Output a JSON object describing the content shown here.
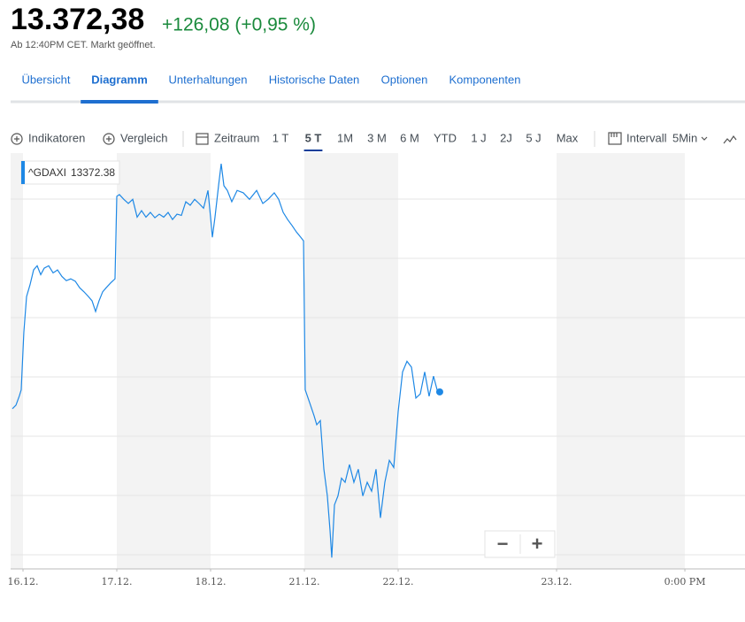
{
  "header": {
    "price": "13.372,38",
    "change": "+126,08 (+0,95 %)",
    "status": "Ab 12:40PM CET. Markt geöffnet."
  },
  "tabs": {
    "items": [
      "Übersicht",
      "Diagramm",
      "Unterhaltungen",
      "Historische Daten",
      "Optionen",
      "Komponenten"
    ],
    "active": "Diagramm"
  },
  "toolbar": {
    "indicators": "Indikatoren",
    "compare": "Vergleich",
    "range_label": "Zeitraum",
    "ranges": [
      "1 T",
      "5 T",
      "1M",
      "3 M",
      "6 M",
      "YTD",
      "1 J",
      "2J",
      "5 J",
      "Max"
    ],
    "active_range": "5 T",
    "interval_label": "Intervall",
    "interval": "5Min"
  },
  "zoom": {
    "minus": "−",
    "plus": "+"
  },
  "chart_data": {
    "type": "line",
    "x": [
      -0.113,
      -0.075,
      -0.038,
      -0.019,
      0.009,
      0.038,
      0.075,
      0.113,
      0.151,
      0.189,
      0.226,
      0.274,
      0.321,
      0.368,
      0.415,
      0.462,
      0.509,
      0.557,
      0.604,
      0.651,
      0.698,
      0.736,
      0.774,
      0.811,
      0.849,
      0.887,
      0.934,
      0.981,
      1.0,
      1.028,
      1.075,
      1.123,
      1.17,
      1.217,
      1.264,
      1.311,
      1.358,
      1.406,
      1.453,
      1.5,
      1.547,
      1.594,
      1.642,
      1.689,
      1.736,
      1.783,
      1.83,
      1.877,
      1.925,
      1.972,
      2.0,
      2.019,
      2.047,
      2.085,
      2.113,
      2.142,
      2.179,
      2.226,
      2.283,
      2.349,
      2.415,
      2.491,
      2.557,
      2.613,
      2.679,
      2.726,
      2.774,
      2.821,
      2.868,
      2.915,
      2.962,
      2.991,
      3.009,
      3.057,
      3.104,
      3.132,
      3.17,
      3.208,
      3.245,
      3.274,
      3.292,
      3.321,
      3.358,
      3.396,
      3.434,
      3.481,
      3.528,
      3.575,
      3.623,
      3.67,
      3.717,
      3.764,
      3.811,
      3.858,
      3.906,
      3.953,
      4.0,
      4.047,
      4.094,
      4.142,
      4.189,
      4.236,
      4.283,
      4.33,
      4.377,
      4.415,
      4.443
    ],
    "series": [
      {
        "name": "^GDAXI",
        "color": "#1e88e5",
        "values": [
          13344,
          13350,
          13366,
          13376,
          13473,
          13533,
          13553,
          13578,
          13585,
          13570,
          13581,
          13585,
          13573,
          13578,
          13567,
          13560,
          13563,
          13559,
          13548,
          13541,
          13533,
          13526,
          13508,
          13526,
          13541,
          13548,
          13556,
          13563,
          13702,
          13705,
          13697,
          13690,
          13697,
          13667,
          13678,
          13667,
          13675,
          13666,
          13672,
          13667,
          13675,
          13663,
          13672,
          13670,
          13693,
          13687,
          13697,
          13690,
          13682,
          13712,
          13667,
          13633,
          13667,
          13720,
          13757,
          13720,
          13712,
          13693,
          13712,
          13708,
          13697,
          13712,
          13690,
          13697,
          13708,
          13697,
          13675,
          13663,
          13653,
          13642,
          13633,
          13627,
          13376,
          13354,
          13332,
          13317,
          13324,
          13242,
          13197,
          13138,
          13093,
          13182,
          13197,
          13227,
          13220,
          13250,
          13220,
          13242,
          13197,
          13220,
          13205,
          13242,
          13160,
          13220,
          13257,
          13245,
          13339,
          13406,
          13424,
          13414,
          13362,
          13369,
          13406,
          13365,
          13399,
          13376,
          13372.38
        ]
      }
    ],
    "xlim": [
      -0.132,
      7.698
    ],
    "xticks": [
      {
        "value": 0,
        "label": "16.12."
      },
      {
        "value": 1,
        "label": "17.12."
      },
      {
        "value": 2,
        "label": "18.12."
      },
      {
        "value": 3,
        "label": "21.12."
      },
      {
        "value": 4,
        "label": "22.12."
      },
      {
        "value": 5.689,
        "label": "23.12."
      },
      {
        "value": 7.057,
        "label": "0:00 PM"
      }
    ],
    "ylim": [
      13074,
      13775
    ]
  }
}
